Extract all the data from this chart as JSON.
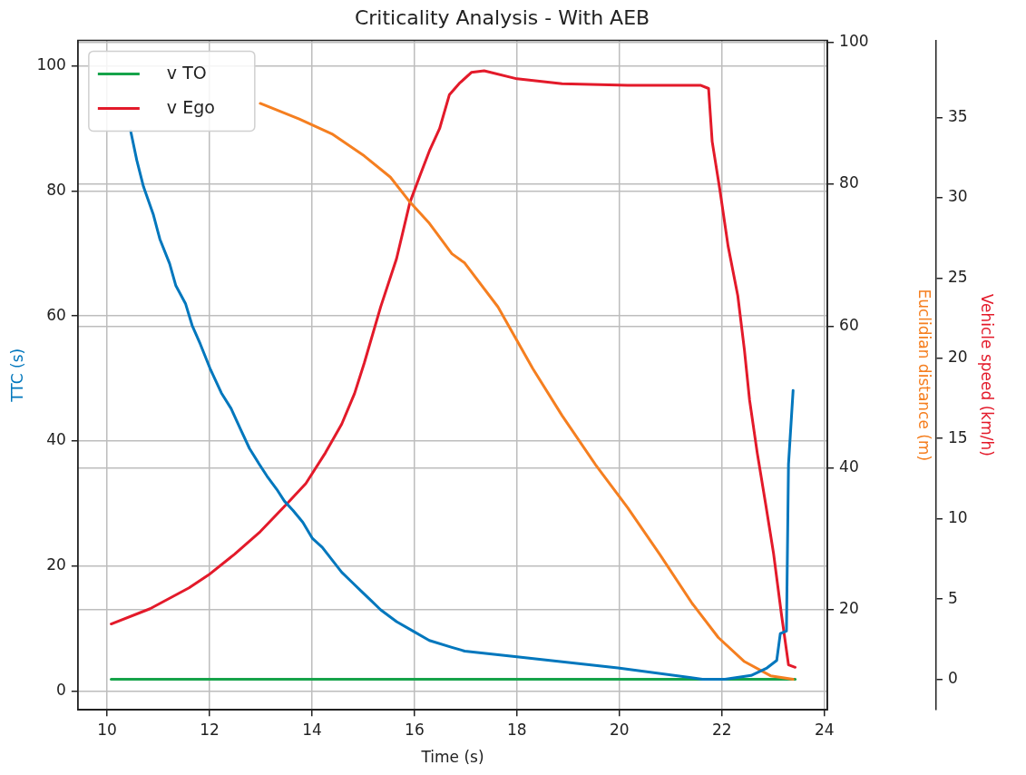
{
  "chart_data": {
    "type": "line",
    "title": "Criticality Analysis - With AEB",
    "xlabel": "Time (s)",
    "ylabel": "TTC (s)",
    "y2label": "Euclidian distance (m)",
    "y3label": "Vehicle speed (km/h)",
    "xlim": [
      9.43,
      24.06
    ],
    "xticks": [
      10,
      12,
      14,
      16,
      18,
      20,
      22,
      24
    ],
    "ylim": [
      -3,
      104.1
    ],
    "yticks": [
      0,
      20,
      40,
      60,
      80,
      100
    ],
    "y2lim": [
      5.9,
      100.3
    ],
    "y2ticks": [
      20,
      40,
      60,
      80,
      100
    ],
    "y3lim": [
      -1.9,
      39.8
    ],
    "y3ticks": [
      0,
      5,
      10,
      15,
      20,
      25,
      30,
      35
    ],
    "grid": true,
    "legend": "top left",
    "marker": "none",
    "line_style": "solid",
    "series": [
      {
        "color": "#0277bd",
        "x": [
          10.46,
          10.58,
          10.71,
          10.9,
          11.03,
          11.22,
          11.34,
          11.53,
          11.66,
          11.82,
          12.01,
          12.23,
          12.42,
          12.61,
          12.78,
          12.97,
          13.12,
          13.31,
          13.46,
          13.63,
          13.82,
          14.01,
          14.2,
          14.39,
          14.58,
          14.77,
          14.96,
          15.15,
          15.34,
          15.65,
          15.97,
          16.29,
          16.73,
          16.98,
          18.0,
          19.97,
          21.62,
          22.06,
          22.57,
          22.88,
          23.07,
          23.14,
          23.26,
          23.3,
          23.39
        ],
        "values": [
          89.6,
          84.9,
          80.7,
          76.3,
          72.3,
          68.4,
          64.9,
          62.0,
          58.5,
          55.5,
          51.6,
          47.7,
          45.2,
          41.8,
          38.8,
          36.3,
          34.4,
          32.3,
          30.4,
          28.9,
          27.0,
          24.4,
          23.0,
          21.0,
          19.0,
          17.5,
          16.0,
          14.5,
          13.0,
          11.1,
          9.6,
          8.1,
          7.0,
          6.4,
          5.5,
          3.7,
          1.9,
          1.9,
          2.5,
          3.7,
          4.9,
          9.2,
          9.6,
          36.3,
          48.1
        ]
      },
      {
        "color": "#f57f20",
        "axis": "y2",
        "x": [
          12.99,
          13.75,
          14.39,
          15.02,
          15.53,
          15.91,
          16.29,
          16.73,
          16.98,
          17.63,
          18.31,
          18.88,
          19.53,
          20.16,
          20.79,
          21.42,
          21.93,
          22.44,
          22.95,
          23.39
        ],
        "values": [
          91.4,
          89.2,
          87.1,
          84.0,
          81.0,
          77.5,
          74.5,
          70.2,
          68.9,
          62.7,
          54.0,
          47.4,
          40.5,
          34.4,
          27.8,
          20.9,
          16.1,
          12.7,
          10.7,
          10.2
        ]
      },
      {
        "name": "v TO",
        "color": "#16a34a",
        "axis": "y3",
        "x": [
          10.08,
          23.43
        ],
        "values": [
          0,
          0
        ]
      },
      {
        "name": "v Ego",
        "color": "#e31a2a",
        "axis": "y3",
        "x": [
          10.08,
          10.84,
          11.6,
          11.98,
          12.49,
          12.99,
          13.5,
          13.88,
          14.26,
          14.58,
          14.83,
          15.02,
          15.34,
          15.65,
          15.91,
          16.11,
          16.29,
          16.49,
          16.68,
          16.87,
          17.11,
          17.36,
          18.0,
          18.88,
          20.16,
          21.58,
          21.74,
          21.81,
          21.96,
          22.12,
          22.31,
          22.44,
          22.54,
          22.69,
          22.86,
          23.01,
          23.16,
          23.3,
          23.43
        ],
        "values": [
          3.45,
          4.4,
          5.7,
          6.5,
          7.8,
          9.2,
          10.9,
          12.2,
          14.1,
          15.9,
          17.8,
          19.7,
          23.2,
          26.2,
          29.7,
          31.4,
          32.9,
          34.3,
          36.4,
          37.1,
          37.8,
          37.9,
          37.4,
          37.1,
          37.0,
          37.0,
          36.8,
          33.5,
          30.5,
          27.0,
          23.9,
          20.5,
          17.4,
          14.1,
          10.8,
          7.8,
          4.1,
          0.9,
          0.75
        ]
      }
    ]
  }
}
